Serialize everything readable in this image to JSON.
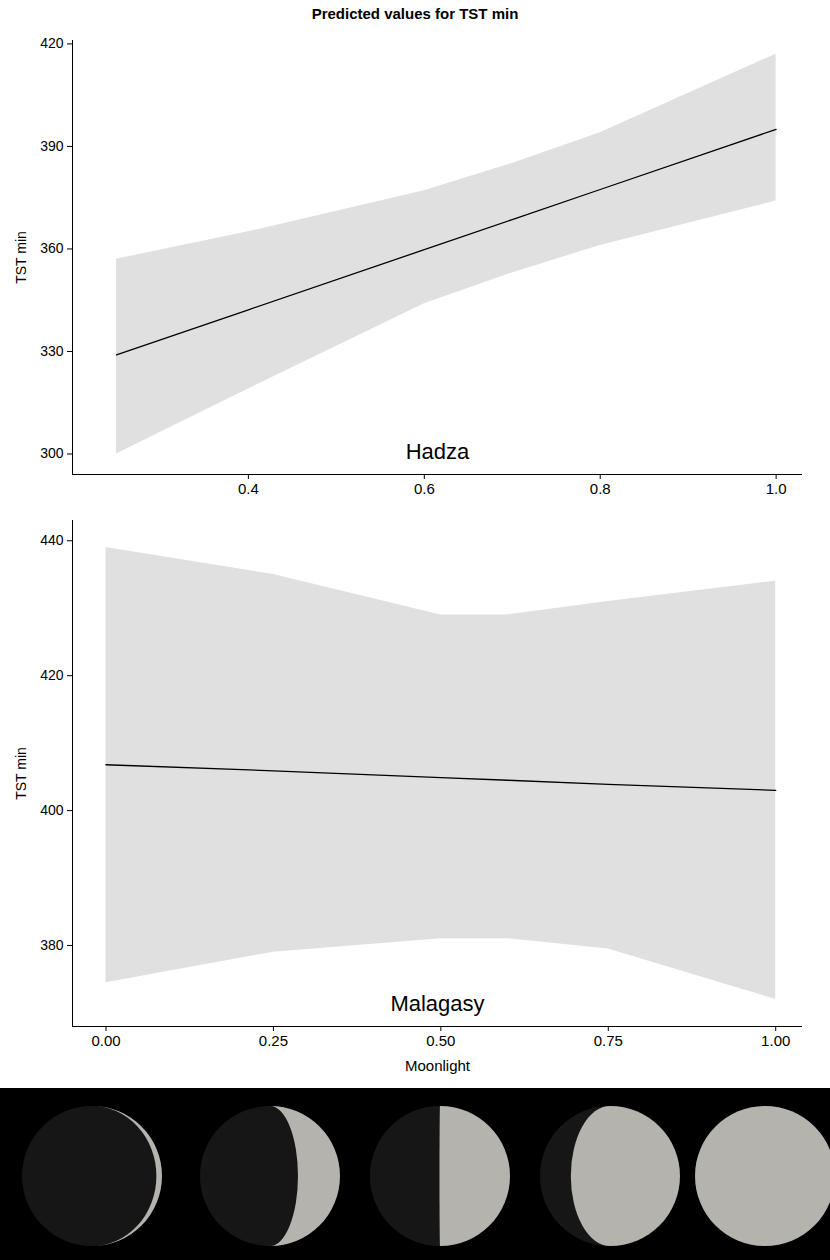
{
  "chart_data": [
    {
      "type": "line",
      "title": "Predicted values for TST min",
      "annotation": "Hadza",
      "y_label": "TST min",
      "x": [
        0.25,
        0.4,
        0.6,
        0.7,
        0.8,
        1.0
      ],
      "values": [
        329,
        342.2,
        359.8,
        368.6,
        377.4,
        395
      ],
      "lower": [
        300,
        319,
        344,
        353,
        361,
        374
      ],
      "upper": [
        357,
        365,
        377,
        385,
        394,
        417
      ],
      "color": "#000000",
      "xlim": [
        0.2,
        1.03
      ],
      "xticks": [
        0.4,
        0.6,
        0.8,
        {
          "value": 1,
          "label": "1.0"
        }
      ],
      "ylim": [
        294,
        421
      ],
      "yticks": [
        300,
        330,
        360,
        390,
        420
      ]
    },
    {
      "type": "line",
      "annotation": "Malagasy",
      "y_label": "TST min",
      "x_label": "Moonlight",
      "x": [
        0,
        0.25,
        0.5,
        0.6,
        0.75,
        1.0
      ],
      "values": [
        406.8,
        405.9,
        404.9,
        404.5,
        403.9,
        403.0
      ],
      "lower": [
        374.5,
        379,
        381,
        381,
        379.5,
        372
      ],
      "upper": [
        439,
        435,
        429,
        429,
        431,
        434
      ],
      "color": "#000000",
      "xlim": [
        -0.05,
        1.04
      ],
      "xticks": [
        {
          "value": 0,
          "label": "0.00"
        },
        {
          "value": 0.25,
          "label": "0.25"
        },
        {
          "value": 0.5,
          "label": "0.50"
        },
        {
          "value": 0.75,
          "label": "0.75"
        },
        {
          "value": 1,
          "label": "1.00"
        }
      ],
      "ylim": [
        368,
        443
      ],
      "yticks": [
        380,
        400,
        420,
        440
      ]
    }
  ]
}
